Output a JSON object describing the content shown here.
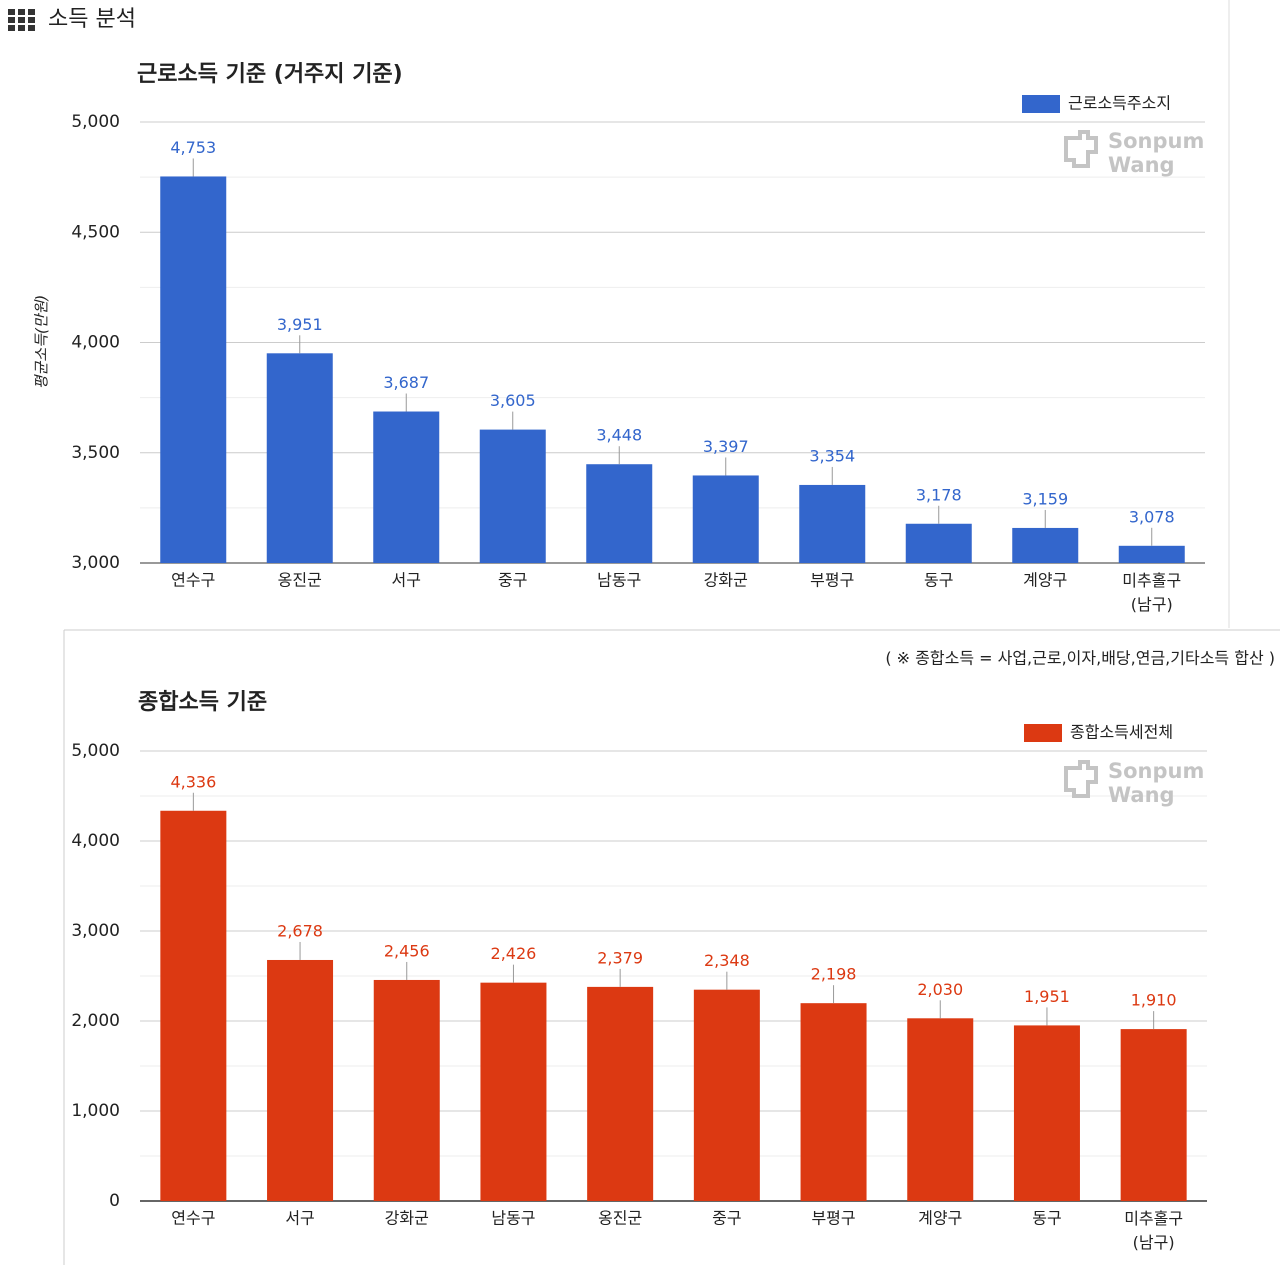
{
  "header": {
    "title": "소득 분석"
  },
  "chart_data": [
    {
      "type": "bar",
      "title": "근로소득 기준 (거주지 기준)",
      "y_label": "평균소득(만원)",
      "categories": [
        "연수구",
        "옹진군",
        "서구",
        "중구",
        "남동구",
        "강화군",
        "부평구",
        "동구",
        "계양구",
        "미추홀구\n(남구)"
      ],
      "series": [
        {
          "name": "근로소득주소지",
          "color": "#3366cc",
          "values": [
            4753,
            3951,
            3687,
            3605,
            3448,
            3397,
            3354,
            3178,
            3159,
            3078
          ],
          "value_labels": [
            "4,753",
            "3,951",
            "3,687",
            "3,605",
            "3,448",
            "3,397",
            "3,354",
            "3,178",
            "3,159",
            "3,078"
          ]
        }
      ],
      "ylim": [
        3000,
        5000
      ],
      "yticks": [
        {
          "value": 3000,
          "label": "3,000"
        },
        {
          "value": 3500,
          "label": "3,500"
        },
        {
          "value": 4000,
          "label": "4,000"
        },
        {
          "value": 4500,
          "label": "4,500"
        },
        {
          "value": 5000,
          "label": "5,000"
        }
      ],
      "grid": true,
      "minor_grid": true,
      "legend": "top-right",
      "watermark": [
        "Sonpum",
        "Wang"
      ]
    },
    {
      "type": "bar",
      "title": "종합소득 기준",
      "note": "( ※ 종합소득 = 사업,근로,이자,배당,연금,기타소득 합산 )",
      "categories": [
        "연수구",
        "서구",
        "강화군",
        "남동구",
        "옹진군",
        "중구",
        "부평구",
        "계양구",
        "동구",
        "미추홀구\n(남구)"
      ],
      "series": [
        {
          "name": "종합소득세전체",
          "color": "#dc3912",
          "values": [
            4336,
            2678,
            2456,
            2426,
            2379,
            2348,
            2198,
            2030,
            1951,
            1910
          ],
          "value_labels": [
            "4,336",
            "2,678",
            "2,456",
            "2,426",
            "2,379",
            "2,348",
            "2,198",
            "2,030",
            "1,951",
            "1,910"
          ]
        }
      ],
      "ylim": [
        0,
        5000
      ],
      "yticks": [
        0,
        {
          "value": 1000,
          "label": "1,000"
        },
        {
          "value": 2000,
          "label": "2,000"
        },
        {
          "value": 3000,
          "label": "3,000"
        },
        {
          "value": 4000,
          "label": "4,000"
        },
        {
          "value": 5000,
          "label": "5,000"
        }
      ],
      "grid": true,
      "minor_grid": true,
      "legend": "top-right",
      "watermark": [
        "Sonpum",
        "Wang"
      ]
    }
  ]
}
